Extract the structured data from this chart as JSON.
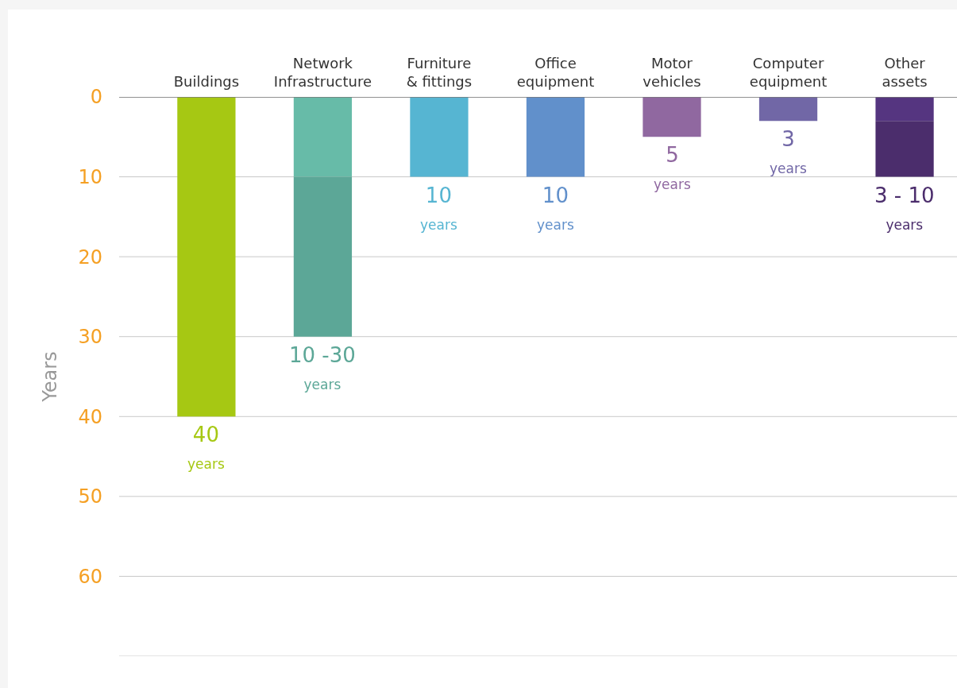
{
  "chart_data": {
    "type": "bar",
    "stacked": true,
    "ylabel": "Years",
    "categories": [
      "Buildings",
      "Network Infrastructure",
      "Furniture & fittings",
      "Office equipment",
      "Motor vehicles",
      "Computer equipment",
      "Other assets"
    ],
    "series": [
      {
        "colors": [
          "#a6c813",
          "#67bba8",
          "#56b5d2",
          "#6190cb",
          "#9068a0",
          "#7167a6",
          "#553580"
        ],
        "values": [
          40,
          10,
          10,
          10,
          5,
          3,
          3
        ],
        "value_labels": [
          "40 years",
          null,
          "10 years",
          "10 years",
          "5 years",
          "3 years",
          null
        ]
      },
      {
        "colors": [
          "#a6c813",
          "#5ca797",
          "#56b5d2",
          "#6190cb",
          "#9068a0",
          "#7167a6",
          "#4b2d6c"
        ],
        "values": [
          null,
          20,
          null,
          null,
          null,
          null,
          7
        ],
        "value_labels": [
          null,
          null,
          null,
          null,
          null,
          null,
          null
        ]
      }
    ],
    "annotations": [
      {
        "text": "10 -30 years",
        "x": "Network Infrastructure",
        "y": 30
      },
      {
        "text": "3 - 10 years",
        "x": "Other assets",
        "y": 10
      }
    ],
    "ylim": [
      70,
      0
    ],
    "yticks": [
      0,
      10,
      20,
      30,
      40,
      50,
      60,
      {
        "value": 70,
        "label": null
      }
    ],
    "grid": "y"
  }
}
